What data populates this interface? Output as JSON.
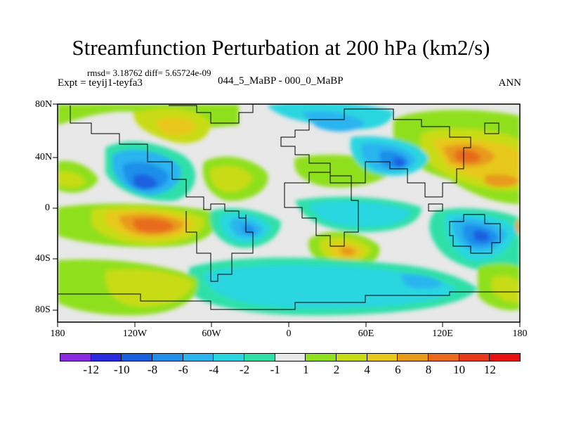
{
  "title": "Streamfunction Perturbation at 200 hPa (km2/s)",
  "stats": "rmsd= 3.18762 diff= 5.65724e-09",
  "experiment": "Expt = teyij1-teyfa3",
  "difference_label": "044_5_MaBP - 000_0_MaBP",
  "season": "ANN",
  "map": {
    "lon_labels": [
      "180",
      "120W",
      "60W",
      "0",
      "60E",
      "120E",
      "180"
    ],
    "lat_labels": [
      "80N",
      "40N",
      "0",
      "40S",
      "80S"
    ],
    "lon_range": [
      -180,
      180
    ],
    "lat_range": [
      -90,
      90
    ]
  },
  "colorbar": {
    "labels": [
      "-12",
      "-10",
      "-8",
      "-6",
      "-4",
      "-2",
      "-1",
      "1",
      "2",
      "4",
      "6",
      "8",
      "10",
      "12"
    ],
    "colors": [
      "#8a2be2",
      "#2a2ae0",
      "#1a5fe0",
      "#1f8fea",
      "#2bb4f0",
      "#29d6e0",
      "#2ee0a8",
      "#e8e8e8",
      "#8fe01e",
      "#c8dc16",
      "#e8c81a",
      "#e89a1a",
      "#e86a1a",
      "#e63a1a",
      "#e81010"
    ]
  }
}
